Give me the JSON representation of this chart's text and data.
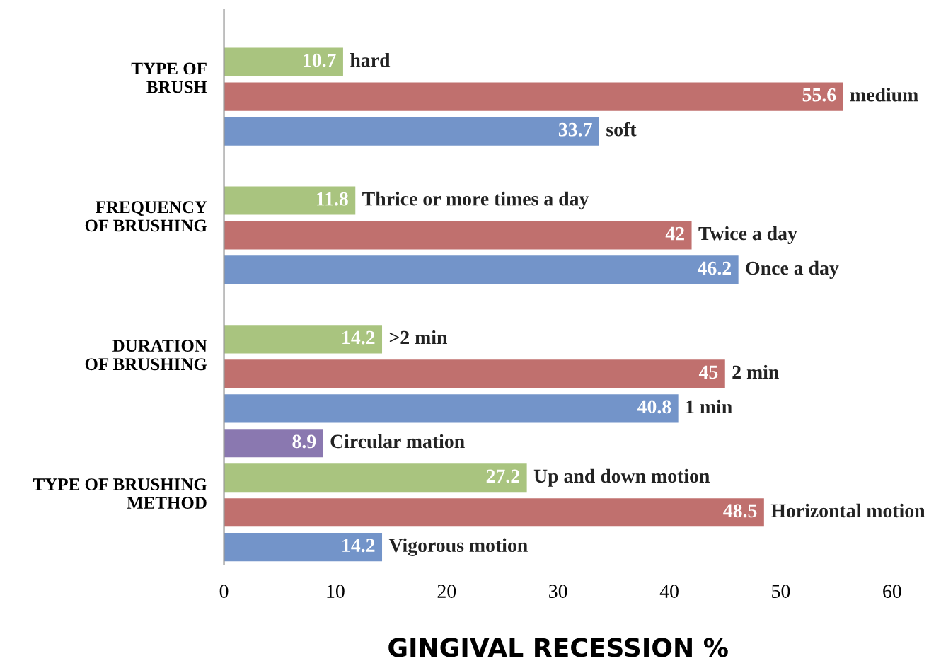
{
  "chart_data": {
    "type": "bar",
    "orientation": "horizontal",
    "xlabel": "GINGIVAL RECESSION %",
    "categories": [
      null,
      "hard",
      "medium",
      "soft",
      null,
      "Thrice or more times a day",
      "Twice a day",
      "Once a day",
      null,
      ">2 min",
      "2 min",
      "1 min",
      "Circular mation",
      "Up and down motion",
      "Horizontal motion",
      "Vigorous motion"
    ],
    "values": [
      null,
      10.7,
      55.6,
      33.7,
      null,
      11.8,
      42,
      46.2,
      null,
      14.2,
      45,
      40.8,
      8.9,
      27.2,
      48.5,
      14.2
    ],
    "colors": [
      null,
      "#a9c47f",
      "#c0706e",
      "#7394c9",
      null,
      "#a9c47f",
      "#c0706e",
      "#7394c9",
      null,
      "#a9c47f",
      "#c0706e",
      "#7394c9",
      "#8a78b0",
      "#a9c47f",
      "#c0706e",
      "#7394c9"
    ],
    "annotations": [
      "TYPE OF\nBRUSH",
      "FREQUENCY\nOF BRUSHING",
      "DURATION\nOF BRUSHING",
      "TYPE OF BRUSHING\nMETHOD"
    ],
    "xlim": [
      0,
      60
    ],
    "xticks": [
      0,
      10,
      20,
      30,
      40,
      50,
      60
    ],
    "data_labels": true,
    "grid": false,
    "legend": false
  }
}
